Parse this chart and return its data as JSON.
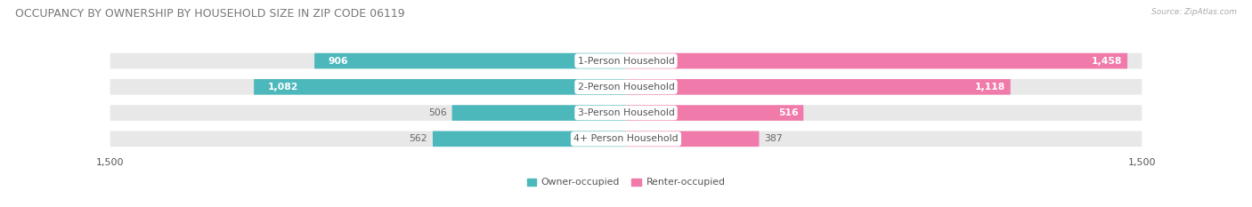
{
  "title": "OCCUPANCY BY OWNERSHIP BY HOUSEHOLD SIZE IN ZIP CODE 06119",
  "source": "Source: ZipAtlas.com",
  "categories": [
    "1-Person Household",
    "2-Person Household",
    "3-Person Household",
    "4+ Person Household"
  ],
  "owner_values": [
    906,
    1082,
    506,
    562
  ],
  "renter_values": [
    1458,
    1118,
    516,
    387
  ],
  "owner_color": "#4db8bc",
  "renter_color": "#f07aaa",
  "axis_max": 1500,
  "bar_background": "#e8e8e8",
  "bar_bg_light": "#f5f5f5",
  "legend_owner_label": "Owner-occupied",
  "legend_renter_label": "Renter-occupied",
  "title_fontsize": 9.0,
  "label_fontsize": 7.8,
  "tick_fontsize": 8.0,
  "owner_text_white_threshold": 600,
  "renter_text_white_threshold": 500
}
